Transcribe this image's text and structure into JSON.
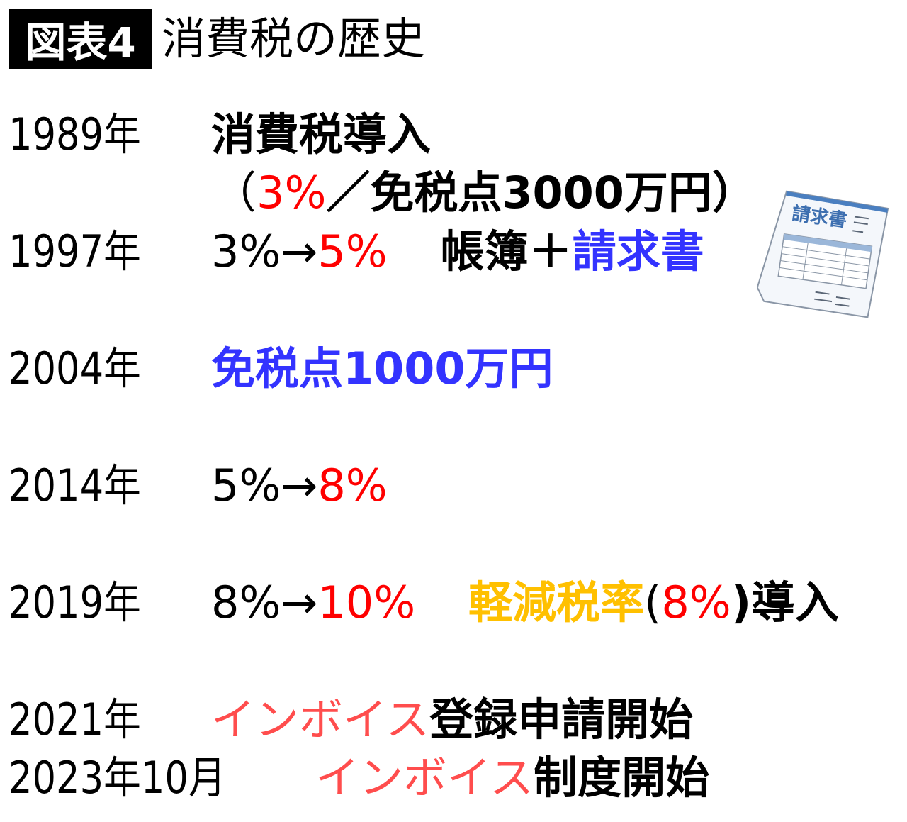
{
  "header": {
    "badge": "図表4",
    "title": "消費税の歴史"
  },
  "colors": {
    "red": "#ff0000",
    "blue": "#3333ff",
    "orange": "#ffc000",
    "invoice_red": "#ff4d4d"
  },
  "rows": [
    {
      "year": "1989年",
      "parts": [
        "消費税導入",
        "（",
        "3%",
        "／免税点3000万円）"
      ]
    },
    {
      "year": "1997年",
      "parts": [
        "3%→",
        "5%",
        "帳簿＋",
        "請求書"
      ]
    },
    {
      "year": "2004年",
      "parts": [
        "免税点1000万円"
      ]
    },
    {
      "year": "2014年",
      "parts": [
        "5%→",
        "8%"
      ]
    },
    {
      "year": "2019年",
      "parts": [
        "8%→",
        "10%",
        "軽減税率",
        "(",
        "8%",
        ")導入"
      ]
    },
    {
      "year": "2021年",
      "parts": [
        "インボイス",
        "登録申請開始"
      ]
    },
    {
      "year": "2023年10月",
      "parts": [
        "インボイス",
        "制度開始"
      ]
    }
  ],
  "illustration": {
    "icon": "invoice-document-icon",
    "label": "請求書"
  }
}
